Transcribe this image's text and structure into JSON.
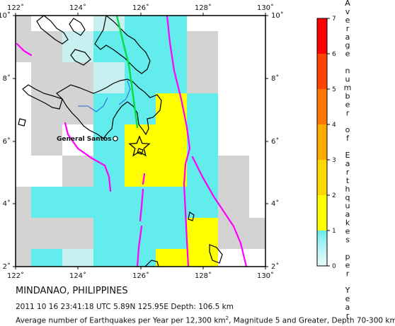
{
  "map": {
    "region_title": "MINDANAO, PHILIPPINES",
    "event_line": "2011 10 16 23:41:18 UTC 5.89N 125.95E Depth: 106.5 km",
    "description_prefix": "Average number of Earthquakes per Year per 12,300 km",
    "description_sup": "2",
    "description_suffix": ", Magnitude 5 and Greater, Depth 70-300 km",
    "lon_range": [
      122,
      130
    ],
    "lat_range": [
      2,
      10
    ],
    "lon_ticks": [
      "122˚",
      "124˚",
      "126˚",
      "128˚",
      "130˚"
    ],
    "lat_ticks": [
      "10˚",
      "8˚",
      "6˚",
      "4˚",
      "2˚"
    ],
    "city": {
      "name": "General Santos",
      "lon": 125.2,
      "lat": 6.1
    },
    "epicenter": {
      "lon": 125.95,
      "lat": 5.89
    },
    "colors": {
      "no_data": "#d3d3d3",
      "scale": [
        "#c8f0f0",
        "#62ecec",
        "#ffff00",
        "#ffd700",
        "#ff9900",
        "#ff5500",
        "#ff0000",
        "#aa0000"
      ],
      "plate_boundary": "#ff00ff",
      "fault": "#00e040",
      "river": "#2b5fd9"
    }
  },
  "legend": {
    "title": "Average number of Earthquakes per Year",
    "ticks": [
      "0",
      "1",
      "2",
      "3",
      "4",
      "5",
      "6",
      "7"
    ]
  }
}
